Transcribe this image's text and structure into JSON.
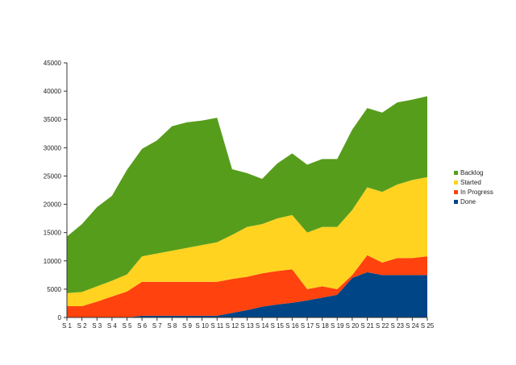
{
  "chart_data": {
    "type": "area",
    "stacked": true,
    "title": "",
    "xlabel": "",
    "ylabel": "",
    "ylim": [
      0,
      45000
    ],
    "yticks": [
      0,
      5000,
      10000,
      15000,
      20000,
      25000,
      30000,
      35000,
      40000,
      45000
    ],
    "grid": false,
    "legend_position": "right",
    "categories": [
      "S 1",
      "S 2",
      "S 3",
      "S 4",
      "S 5",
      "S 6",
      "S 7",
      "S 8",
      "S 9",
      "S 10",
      "S 11",
      "S 12",
      "S 13",
      "S 14",
      "S 15",
      "S 16",
      "S 17",
      "S 18",
      "S 19",
      "S 20",
      "S 21",
      "S 22",
      "S 23",
      "S 24",
      "S 25"
    ],
    "series": [
      {
        "name": "Done",
        "color": "#004586",
        "values": [
          0,
          0,
          0,
          0,
          0,
          300,
          300,
          300,
          300,
          300,
          300,
          800,
          1300,
          1900,
          2300,
          2600,
          3000,
          3500,
          4000,
          7000,
          8000,
          7500,
          7500,
          7500,
          7500
        ]
      },
      {
        "name": "In Progress",
        "color": "#ff420e",
        "values": [
          2000,
          2000,
          2800,
          3700,
          4600,
          6000,
          6000,
          6000,
          6000,
          6000,
          6000,
          6000,
          5900,
          5900,
          5900,
          5900,
          2000,
          2000,
          1000,
          500,
          3000,
          2200,
          3000,
          3000,
          3300
        ]
      },
      {
        "name": "Started",
        "color": "#ffd320",
        "values": [
          2300,
          2500,
          2700,
          2800,
          3000,
          4500,
          5000,
          5500,
          6000,
          6500,
          7000,
          7800,
          8800,
          8700,
          9300,
          9600,
          10000,
          10500,
          11000,
          11500,
          12000,
          12500,
          13000,
          13800,
          14000
        ]
      },
      {
        "name": "Backlog",
        "color": "#579d1c",
        "values": [
          10000,
          12000,
          14000,
          15000,
          18500,
          19000,
          20000,
          22000,
          22200,
          22000,
          22000,
          11600,
          9500,
          8000,
          9700,
          10900,
          12000,
          12000,
          12000,
          14200,
          14000,
          14000,
          14500,
          14200,
          14300
        ]
      }
    ],
    "legend_order": [
      "Backlog",
      "Started",
      "In Progress",
      "Done"
    ]
  }
}
